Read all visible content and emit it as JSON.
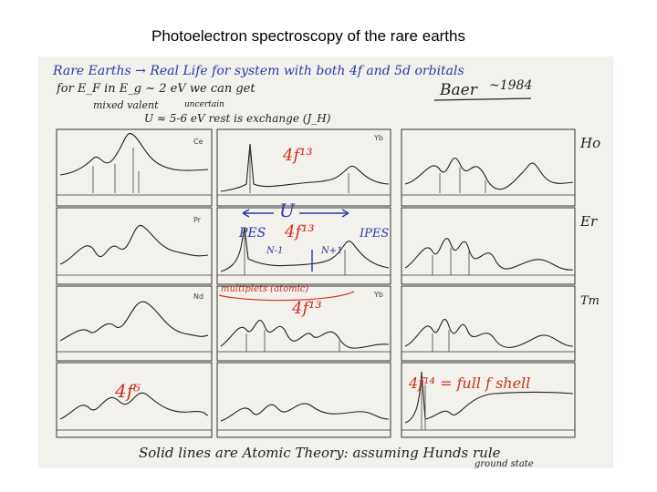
{
  "slide": {
    "title": "Photoelectron spectroscopy of the rare earths"
  },
  "figure": {
    "kind": "scanned hand-annotated spectra grid",
    "colors": {
      "ink_blue": "#2a3aa8",
      "ink_red": "#d03020",
      "ink_black": "#222222",
      "paper": "#f3f1ec"
    },
    "annotations": {
      "line1": "Rare Earths → Real Life for system with both 4f and 5d orbitals",
      "line2": "for E_F in E_g ~ 2 eV we can get",
      "line3": "mixed valent",
      "line3b": "uncertain",
      "line4": "U ≈ 5-6 eV rest is exchange (J_H)",
      "credit": "Baer",
      "year": "~1984",
      "footer1": "Solid lines are Atomic Theory: assuming Hunds rule",
      "footer2": "ground state"
    },
    "labels": {
      "ho": "Ho",
      "er": "Er",
      "tm": "Tm",
      "pes": "PES",
      "ipes": "IPES",
      "u": "U",
      "nm1": "N-1",
      "np1": "N+1",
      "multiplets": "multiplets (atomic)",
      "f0": "4f⁰",
      "f7": "4f⁷",
      "f13": "4f¹³",
      "f6": "4f⁶",
      "f14": "4f¹⁴ = full f shell",
      "yb": "Yb",
      "ce": "Ce",
      "pr": "Pr",
      "nd": "Nd"
    }
  }
}
